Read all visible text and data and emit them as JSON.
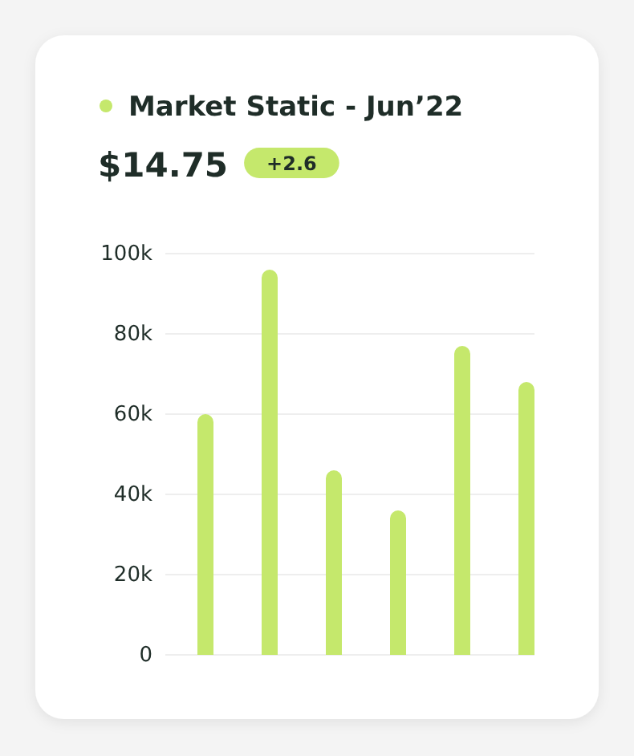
{
  "chart_data": {
    "type": "bar",
    "title": "Market Static - Jun’22",
    "subtitle": "$14.75",
    "annotations": [
      "+2.6"
    ],
    "categories": [
      null,
      null,
      null,
      null,
      null,
      null
    ],
    "values": [
      60,
      96,
      46,
      36,
      77,
      68
    ],
    "color": "#c5e86c",
    "ylim": [
      0,
      100
    ],
    "yticks": [
      {
        "value": 0,
        "label": "0"
      },
      {
        "value": 20,
        "label": "20k"
      },
      {
        "value": 40,
        "label": "40k"
      },
      {
        "value": 60,
        "label": "60k"
      },
      {
        "value": 80,
        "label": "80k"
      },
      {
        "value": 100,
        "label": "100k"
      }
    ],
    "grid": "y"
  }
}
